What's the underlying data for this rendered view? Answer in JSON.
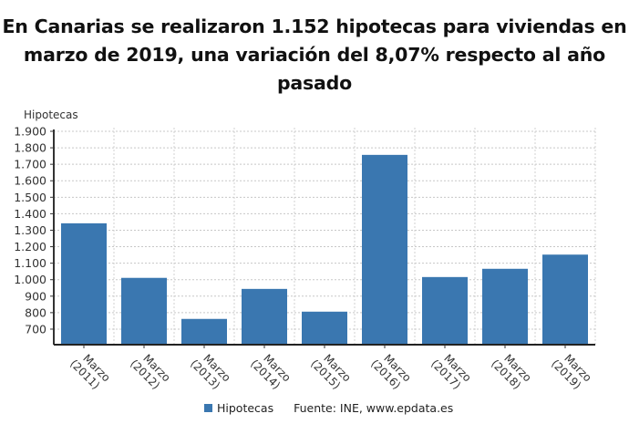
{
  "chart_data": {
    "type": "bar",
    "title": "En Canarias se realizaron 1.152 hipotecas para viviendas en marzo de 2019, una variación del 8,07% respecto al año pasado",
    "title_lines": [
      "En Canarias se realizaron 1.152 hipotecas para viviendas en",
      "marzo de 2019, una variación del 8,07% respecto al año",
      "pasado"
    ],
    "xlabel": "",
    "ylabel": "Hipotecas",
    "categories": [
      "Marzo (2011)",
      "Marzo (2012)",
      "Marzo (2013)",
      "Marzo (2014)",
      "Marzo (2015)",
      "Marzo (2016)",
      "Marzo (2017)",
      "Marzo (2018)",
      "Marzo (2019)"
    ],
    "category_lines": [
      [
        "Marzo",
        "(2011)"
      ],
      [
        "Marzo",
        "(2012)"
      ],
      [
        "Marzo",
        "(2013)"
      ],
      [
        "Marzo",
        "(2014)"
      ],
      [
        "Marzo",
        "(2015)"
      ],
      [
        "Marzo",
        "(2016)"
      ],
      [
        "Marzo",
        "(2017)"
      ],
      [
        "Marzo",
        "(2018)"
      ],
      [
        "Marzo",
        "(2019)"
      ]
    ],
    "series": [
      {
        "name": "Hipotecas",
        "color": "#3a77b0",
        "values": [
          1342,
          1011,
          762,
          944,
          806,
          1757,
          1016,
          1066,
          1152
        ]
      }
    ],
    "ylim": [
      606,
      1900
    ],
    "yticks": [
      700,
      800,
      900,
      1000,
      1100,
      1200,
      1300,
      1400,
      1500,
      1600,
      1700,
      1800,
      1900
    ],
    "ytick_labels": [
      "700",
      "800",
      "900",
      "1.000",
      "1.100",
      "1.200",
      "1.300",
      "1.400",
      "1.500",
      "1.600",
      "1.700",
      "1.800",
      "1.900"
    ],
    "grid": true,
    "legend_position": "bottom"
  },
  "legend": {
    "label": "Hipotecas"
  },
  "source": "Fuente: INE, www.epdata.es"
}
